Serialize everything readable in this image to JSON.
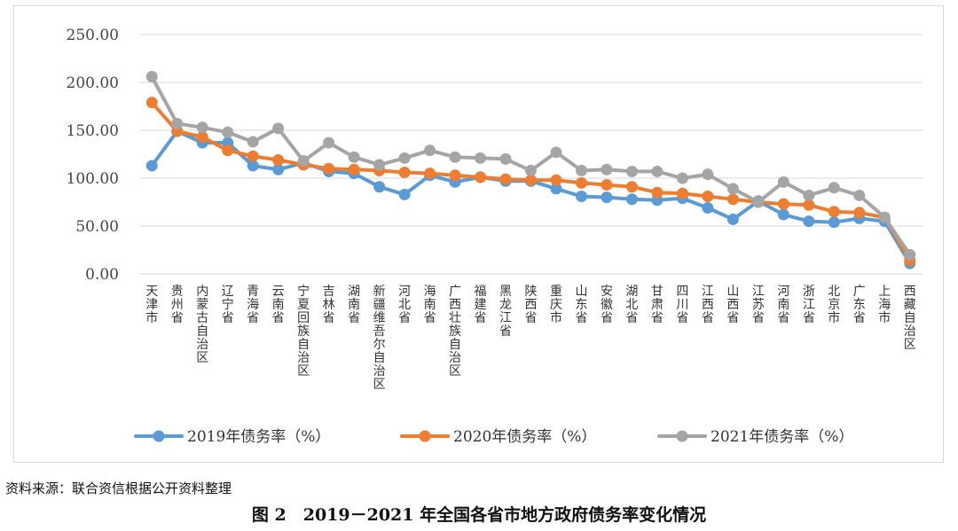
{
  "chart_data": {
    "type": "line",
    "title": "",
    "xlabel": "",
    "ylabel": "",
    "ylim": [
      0,
      250
    ],
    "y_ticks": [
      "0.00",
      "50.00",
      "100.00",
      "150.00",
      "200.00",
      "250.00"
    ],
    "y_tick_values": [
      0,
      50,
      100,
      150,
      200,
      250
    ],
    "grid": true,
    "legend_position": "bottom",
    "categories": [
      "天津市",
      "贵州省",
      "内蒙古自治区",
      "辽宁省",
      "青海省",
      "云南省",
      "宁夏回族自治区",
      "吉林省",
      "湖南省",
      "新疆维吾尔自治区",
      "河北省",
      "海南省",
      "广西壮族自治区",
      "福建省",
      "黑龙江省",
      "陕西省",
      "重庆市",
      "山东省",
      "安徽省",
      "湖北省",
      "甘肃省",
      "四川省",
      "江西省",
      "山西省",
      "江苏省",
      "河南省",
      "浙江省",
      "北京市",
      "广东省",
      "上海市",
      "西藏自治区"
    ],
    "series": [
      {
        "name": "2019年债务率（%）",
        "color": "#5b9bd5",
        "values": [
          113,
          149,
          137,
          137,
          113,
          109,
          116,
          107,
          105,
          91,
          83,
          103,
          96,
          101,
          97,
          97,
          89,
          81,
          80,
          78,
          77,
          79,
          69,
          57,
          76,
          62,
          55,
          54,
          58,
          55,
          11
        ]
      },
      {
        "name": "2020年债务率（%）",
        "color": "#ed7d31",
        "values": [
          179,
          149,
          143,
          129,
          123,
          119,
          114,
          110,
          109,
          108,
          106,
          105,
          103,
          101,
          99,
          98,
          98,
          95,
          93,
          91,
          85,
          84,
          81,
          78,
          75,
          73,
          72,
          65,
          64,
          59,
          14
        ]
      },
      {
        "name": "2021年债务率（%）",
        "color": "#a5a5a5",
        "values": [
          206,
          157,
          153,
          148,
          138,
          152,
          118,
          137,
          122,
          114,
          121,
          129,
          122,
          121,
          120,
          108,
          127,
          108,
          109,
          107,
          107,
          100,
          104,
          89,
          75,
          96,
          82,
          90,
          82,
          59,
          20
        ]
      }
    ]
  },
  "source_note": "资料来源：联合资信根据公开资料整理",
  "figure_caption": "图 2　2019－2021 年全国各省市地方政府债务率变化情况"
}
